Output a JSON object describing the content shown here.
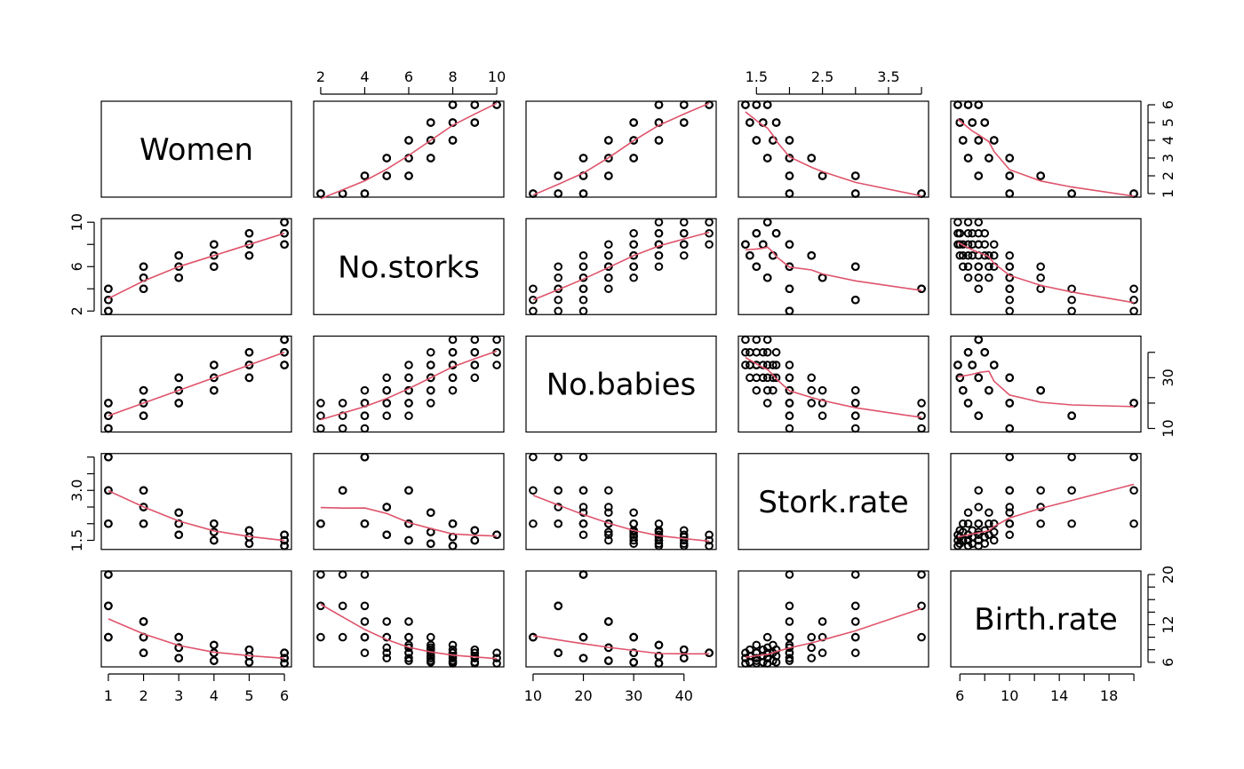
{
  "chart_data": {
    "type": "scatter",
    "subtype": "pairs-matrix",
    "variables": [
      "Women",
      "No.storks",
      "No.babies",
      "Stork.rate",
      "Birth.rate"
    ],
    "smoother": "lowess",
    "colors": {
      "points": "#000000",
      "smooth": "#DF536B"
    },
    "axes": {
      "Women": {
        "ticks": [
          1,
          2,
          3,
          4,
          5,
          6
        ],
        "labels": [
          "1",
          "2",
          "3",
          "4",
          "5",
          "6"
        ]
      },
      "No.storks": {
        "ticks": [
          2,
          4,
          6,
          8,
          10
        ],
        "labels": [
          "2",
          "4",
          "6",
          "8",
          "10"
        ],
        "side_labels": [
          "2",
          "6",
          "10"
        ]
      },
      "No.babies": {
        "ticks": [
          10,
          20,
          30,
          40
        ],
        "labels": [
          "10",
          "20",
          "30",
          "40"
        ],
        "side_labels": [
          "10",
          "30"
        ]
      },
      "Stork.rate": {
        "ticks": [
          1.5,
          2,
          2.5,
          3,
          3.5,
          4
        ],
        "labels": [
          "1.5",
          "2.5",
          "3.5"
        ],
        "side_labels": [
          "1.5",
          "3.0"
        ]
      },
      "Birth.rate": {
        "ticks": [
          6,
          8,
          10,
          12,
          14,
          16,
          18,
          20
        ],
        "labels": [
          "6",
          "10",
          "14",
          "18"
        ],
        "side_labels": [
          "6",
          "12",
          "20"
        ]
      }
    },
    "rows": [
      [
        1,
        2,
        10,
        2,
        10
      ],
      [
        1,
        2,
        15,
        2,
        15
      ],
      [
        1,
        2,
        20,
        2,
        20
      ],
      [
        1,
        3,
        10,
        3,
        10
      ],
      [
        1,
        3,
        15,
        3,
        15
      ],
      [
        1,
        3,
        20,
        3,
        20
      ],
      [
        1,
        4,
        10,
        4,
        10
      ],
      [
        1,
        4,
        15,
        4,
        15
      ],
      [
        1,
        4,
        20,
        4,
        20
      ],
      [
        2,
        4,
        15,
        2,
        7.5
      ],
      [
        2,
        4,
        20,
        2,
        10
      ],
      [
        2,
        4,
        25,
        2,
        12.5
      ],
      [
        2,
        5,
        15,
        2.5,
        7.5
      ],
      [
        2,
        5,
        20,
        2.5,
        10
      ],
      [
        2,
        5,
        25,
        2.5,
        12.5
      ],
      [
        2,
        6,
        15,
        3,
        7.5
      ],
      [
        2,
        6,
        20,
        3,
        10
      ],
      [
        2,
        6,
        25,
        3,
        12.5
      ],
      [
        3,
        5,
        20,
        1.6667,
        6.6667
      ],
      [
        3,
        5,
        25,
        1.6667,
        8.3333
      ],
      [
        3,
        5,
        30,
        1.6667,
        10
      ],
      [
        3,
        6,
        20,
        2,
        6.6667
      ],
      [
        3,
        6,
        25,
        2,
        8.3333
      ],
      [
        3,
        6,
        30,
        2,
        10
      ],
      [
        3,
        7,
        20,
        2.3333,
        6.6667
      ],
      [
        3,
        7,
        25,
        2.3333,
        8.3333
      ],
      [
        3,
        7,
        30,
        2.3333,
        10
      ],
      [
        4,
        6,
        25,
        1.5,
        6.25
      ],
      [
        4,
        6,
        30,
        1.5,
        7.5
      ],
      [
        4,
        6,
        35,
        1.5,
        8.75
      ],
      [
        4,
        7,
        25,
        1.75,
        6.25
      ],
      [
        4,
        7,
        30,
        1.75,
        7.5
      ],
      [
        4,
        7,
        35,
        1.75,
        8.75
      ],
      [
        4,
        8,
        25,
        2,
        6.25
      ],
      [
        4,
        8,
        30,
        2,
        7.5
      ],
      [
        4,
        8,
        35,
        2,
        8.75
      ],
      [
        5,
        7,
        30,
        1.4,
        6
      ],
      [
        5,
        7,
        35,
        1.4,
        7
      ],
      [
        5,
        7,
        40,
        1.4,
        8
      ],
      [
        5,
        8,
        30,
        1.6,
        6
      ],
      [
        5,
        8,
        35,
        1.6,
        7
      ],
      [
        5,
        8,
        40,
        1.6,
        8
      ],
      [
        5,
        9,
        30,
        1.8,
        6
      ],
      [
        5,
        9,
        35,
        1.8,
        7
      ],
      [
        5,
        9,
        40,
        1.8,
        8
      ],
      [
        6,
        8,
        35,
        1.3333,
        5.8333
      ],
      [
        6,
        8,
        40,
        1.3333,
        6.6667
      ],
      [
        6,
        8,
        45,
        1.3333,
        7.5
      ],
      [
        6,
        9,
        35,
        1.5,
        5.8333
      ],
      [
        6,
        9,
        40,
        1.5,
        6.6667
      ],
      [
        6,
        9,
        45,
        1.5,
        7.5
      ],
      [
        6,
        10,
        35,
        1.6667,
        5.8333
      ],
      [
        6,
        10,
        40,
        1.6667,
        6.6667
      ],
      [
        6,
        10,
        45,
        1.6667,
        7.5
      ]
    ]
  }
}
